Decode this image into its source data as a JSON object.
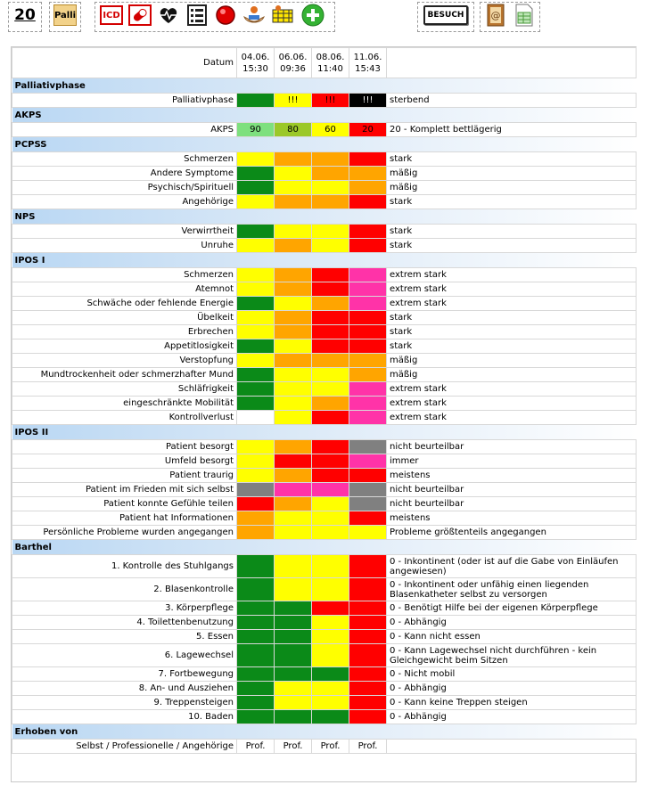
{
  "toolbar": {
    "counter": "20",
    "palli": "Palli",
    "icd": "ICD",
    "besuch": "BESUCH"
  },
  "colors": {
    "green": "#0b8a18",
    "yellow": "#ffff00",
    "orange": "#ffa500",
    "red": "#ff0000",
    "black": "#000000",
    "grey": "#808080",
    "pink": "#ff33a8",
    "lightgreen": "#7ee07e",
    "olive": "#9bc828",
    "white": "#ffffff",
    "section_gradient": "#b9d7f3"
  },
  "header": {
    "datum_label": "Datum",
    "dates": [
      {
        "date": "04.06.",
        "time": "15:30"
      },
      {
        "date": "06.06.",
        "time": "09:36"
      },
      {
        "date": "08.06.",
        "time": "11:40"
      },
      {
        "date": "11.06.",
        "time": "15:43"
      }
    ]
  },
  "sections": [
    {
      "title": "Palliativphase",
      "rows": [
        {
          "label": "Palliativphase",
          "cells": [
            [
              "green",
              ""
            ],
            [
              "yellow",
              "!!!"
            ],
            [
              "red",
              "!!!"
            ],
            [
              "black",
              "!!!"
            ]
          ],
          "desc": "sterbend"
        }
      ]
    },
    {
      "title": "AKPS",
      "rows": [
        {
          "label": "AKPS",
          "cells": [
            [
              "lightgreen",
              "90"
            ],
            [
              "olive",
              "80"
            ],
            [
              "yellow",
              "60"
            ],
            [
              "red",
              "20"
            ]
          ],
          "desc": "20 - Komplett bettlägerig"
        }
      ]
    },
    {
      "title": "PCPSS",
      "rows": [
        {
          "label": "Schmerzen",
          "cells": [
            [
              "yellow",
              ""
            ],
            [
              "orange",
              ""
            ],
            [
              "orange",
              ""
            ],
            [
              "red",
              ""
            ]
          ],
          "desc": "stark"
        },
        {
          "label": "Andere Symptome",
          "cells": [
            [
              "green",
              ""
            ],
            [
              "yellow",
              ""
            ],
            [
              "orange",
              ""
            ],
            [
              "orange",
              ""
            ]
          ],
          "desc": "mäßig"
        },
        {
          "label": "Psychisch/Spirituell",
          "cells": [
            [
              "green",
              ""
            ],
            [
              "yellow",
              ""
            ],
            [
              "yellow",
              ""
            ],
            [
              "orange",
              ""
            ]
          ],
          "desc": "mäßig"
        },
        {
          "label": "Angehörige",
          "cells": [
            [
              "yellow",
              ""
            ],
            [
              "orange",
              ""
            ],
            [
              "orange",
              ""
            ],
            [
              "red",
              ""
            ]
          ],
          "desc": "stark"
        }
      ]
    },
    {
      "title": "NPS",
      "rows": [
        {
          "label": "Verwirrtheit",
          "cells": [
            [
              "green",
              ""
            ],
            [
              "yellow",
              ""
            ],
            [
              "yellow",
              ""
            ],
            [
              "red",
              ""
            ]
          ],
          "desc": "stark"
        },
        {
          "label": "Unruhe",
          "cells": [
            [
              "yellow",
              ""
            ],
            [
              "orange",
              ""
            ],
            [
              "yellow",
              ""
            ],
            [
              "red",
              ""
            ]
          ],
          "desc": "stark"
        }
      ]
    },
    {
      "title": "IPOS I",
      "rows": [
        {
          "label": "Schmerzen",
          "cells": [
            [
              "yellow",
              ""
            ],
            [
              "orange",
              ""
            ],
            [
              "red",
              ""
            ],
            [
              "pink",
              ""
            ]
          ],
          "desc": "extrem stark"
        },
        {
          "label": "Atemnot",
          "cells": [
            [
              "yellow",
              ""
            ],
            [
              "orange",
              ""
            ],
            [
              "red",
              ""
            ],
            [
              "pink",
              ""
            ]
          ],
          "desc": "extrem stark"
        },
        {
          "label": "Schwäche oder fehlende Energie",
          "cells": [
            [
              "green",
              ""
            ],
            [
              "yellow",
              ""
            ],
            [
              "orange",
              ""
            ],
            [
              "pink",
              ""
            ]
          ],
          "desc": "extrem stark"
        },
        {
          "label": "Übelkeit",
          "cells": [
            [
              "yellow",
              ""
            ],
            [
              "orange",
              ""
            ],
            [
              "red",
              ""
            ],
            [
              "red",
              ""
            ]
          ],
          "desc": "stark"
        },
        {
          "label": "Erbrechen",
          "cells": [
            [
              "yellow",
              ""
            ],
            [
              "orange",
              ""
            ],
            [
              "red",
              ""
            ],
            [
              "red",
              ""
            ]
          ],
          "desc": "stark"
        },
        {
          "label": "Appetitlosigkeit",
          "cells": [
            [
              "green",
              ""
            ],
            [
              "yellow",
              ""
            ],
            [
              "red",
              ""
            ],
            [
              "red",
              ""
            ]
          ],
          "desc": "stark"
        },
        {
          "label": "Verstopfung",
          "cells": [
            [
              "yellow",
              ""
            ],
            [
              "orange",
              ""
            ],
            [
              "orange",
              ""
            ],
            [
              "orange",
              ""
            ]
          ],
          "desc": "mäßig"
        },
        {
          "label": "Mundtrockenheit oder schmerzhafter Mund",
          "cells": [
            [
              "green",
              ""
            ],
            [
              "yellow",
              ""
            ],
            [
              "yellow",
              ""
            ],
            [
              "orange",
              ""
            ]
          ],
          "desc": "mäßig"
        },
        {
          "label": "Schläfrigkeit",
          "cells": [
            [
              "green",
              ""
            ],
            [
              "yellow",
              ""
            ],
            [
              "yellow",
              ""
            ],
            [
              "pink",
              ""
            ]
          ],
          "desc": "extrem stark"
        },
        {
          "label": "eingeschränkte Mobilität",
          "cells": [
            [
              "green",
              ""
            ],
            [
              "yellow",
              ""
            ],
            [
              "orange",
              ""
            ],
            [
              "pink",
              ""
            ]
          ],
          "desc": "extrem stark"
        },
        {
          "label": "Kontrollverlust",
          "cells": [
            [
              "white",
              ""
            ],
            [
              "yellow",
              ""
            ],
            [
              "red",
              ""
            ],
            [
              "pink",
              ""
            ]
          ],
          "desc": "extrem stark"
        }
      ]
    },
    {
      "title": "IPOS II",
      "rows": [
        {
          "label": "Patient besorgt",
          "cells": [
            [
              "yellow",
              ""
            ],
            [
              "orange",
              ""
            ],
            [
              "red",
              ""
            ],
            [
              "grey",
              ""
            ]
          ],
          "desc": "nicht beurteilbar"
        },
        {
          "label": "Umfeld besorgt",
          "cells": [
            [
              "yellow",
              ""
            ],
            [
              "red",
              ""
            ],
            [
              "red",
              ""
            ],
            [
              "pink",
              ""
            ]
          ],
          "desc": "immer"
        },
        {
          "label": "Patient traurig",
          "cells": [
            [
              "yellow",
              ""
            ],
            [
              "orange",
              ""
            ],
            [
              "red",
              ""
            ],
            [
              "red",
              ""
            ]
          ],
          "desc": "meistens"
        },
        {
          "label": "Patient im Frieden mit sich selbst",
          "cells": [
            [
              "grey",
              ""
            ],
            [
              "pink",
              ""
            ],
            [
              "pink",
              ""
            ],
            [
              "grey",
              ""
            ]
          ],
          "desc": "nicht beurteilbar"
        },
        {
          "label": "Patient konnte Gefühle teilen",
          "cells": [
            [
              "red",
              ""
            ],
            [
              "orange",
              ""
            ],
            [
              "yellow",
              ""
            ],
            [
              "grey",
              ""
            ]
          ],
          "desc": "nicht beurteilbar"
        },
        {
          "label": "Patient hat Informationen",
          "cells": [
            [
              "orange",
              ""
            ],
            [
              "yellow",
              ""
            ],
            [
              "yellow",
              ""
            ],
            [
              "red",
              ""
            ]
          ],
          "desc": "meistens"
        },
        {
          "label": "Persönliche Probleme wurden angegangen",
          "cells": [
            [
              "orange",
              ""
            ],
            [
              "yellow",
              ""
            ],
            [
              "yellow",
              ""
            ],
            [
              "yellow",
              ""
            ]
          ],
          "desc": "Probleme größtenteils angegangen"
        }
      ]
    },
    {
      "title": "Barthel",
      "rows": [
        {
          "label": "1. Kontrolle des Stuhlgangs",
          "cells": [
            [
              "green",
              ""
            ],
            [
              "yellow",
              ""
            ],
            [
              "yellow",
              ""
            ],
            [
              "red",
              ""
            ]
          ],
          "desc": "0 - Inkontinent (oder ist auf die Gabe von Einläufen angewiesen)",
          "tall": true
        },
        {
          "label": "2. Blasenkontrolle",
          "cells": [
            [
              "green",
              ""
            ],
            [
              "yellow",
              ""
            ],
            [
              "yellow",
              ""
            ],
            [
              "red",
              ""
            ]
          ],
          "desc": "0 - Inkontinent oder unfähig einen liegenden Blasenkatheter selbst zu versorgen",
          "tall": true
        },
        {
          "label": "3. Körperpflege",
          "cells": [
            [
              "green",
              ""
            ],
            [
              "green",
              ""
            ],
            [
              "red",
              ""
            ],
            [
              "red",
              ""
            ]
          ],
          "desc": "0 - Benötigt Hilfe bei der eigenen Körperpflege"
        },
        {
          "label": "4. Toilettenbenutzung",
          "cells": [
            [
              "green",
              ""
            ],
            [
              "green",
              ""
            ],
            [
              "yellow",
              ""
            ],
            [
              "red",
              ""
            ]
          ],
          "desc": "0 - Abhängig"
        },
        {
          "label": "5. Essen",
          "cells": [
            [
              "green",
              ""
            ],
            [
              "green",
              ""
            ],
            [
              "yellow",
              ""
            ],
            [
              "red",
              ""
            ]
          ],
          "desc": "0 - Kann nicht essen"
        },
        {
          "label": "6. Lagewechsel",
          "cells": [
            [
              "green",
              ""
            ],
            [
              "green",
              ""
            ],
            [
              "yellow",
              ""
            ],
            [
              "red",
              ""
            ]
          ],
          "desc": "0 - Kann Lagewechsel nicht durchführen - kein Gleichgewicht beim Sitzen",
          "tall": true
        },
        {
          "label": "7. Fortbewegung",
          "cells": [
            [
              "green",
              ""
            ],
            [
              "green",
              ""
            ],
            [
              "green",
              ""
            ],
            [
              "red",
              ""
            ]
          ],
          "desc": "0 - Nicht mobil"
        },
        {
          "label": "8. An- und Ausziehen",
          "cells": [
            [
              "green",
              ""
            ],
            [
              "yellow",
              ""
            ],
            [
              "yellow",
              ""
            ],
            [
              "red",
              ""
            ]
          ],
          "desc": "0 - Abhängig"
        },
        {
          "label": "9. Treppensteigen",
          "cells": [
            [
              "green",
              ""
            ],
            [
              "yellow",
              ""
            ],
            [
              "yellow",
              ""
            ],
            [
              "red",
              ""
            ]
          ],
          "desc": "0 - Kann keine Treppen steigen"
        },
        {
          "label": "10. Baden",
          "cells": [
            [
              "green",
              ""
            ],
            [
              "green",
              ""
            ],
            [
              "green",
              ""
            ],
            [
              "red",
              ""
            ]
          ],
          "desc": "0 - Abhängig"
        }
      ]
    },
    {
      "title": "Erhoben von",
      "rows": [
        {
          "label": "Selbst / Professionelle / Angehörige",
          "cells": [
            [
              "white",
              "Prof."
            ],
            [
              "white",
              "Prof."
            ],
            [
              "white",
              "Prof."
            ],
            [
              "white",
              "Prof."
            ]
          ],
          "desc": ""
        }
      ]
    }
  ]
}
